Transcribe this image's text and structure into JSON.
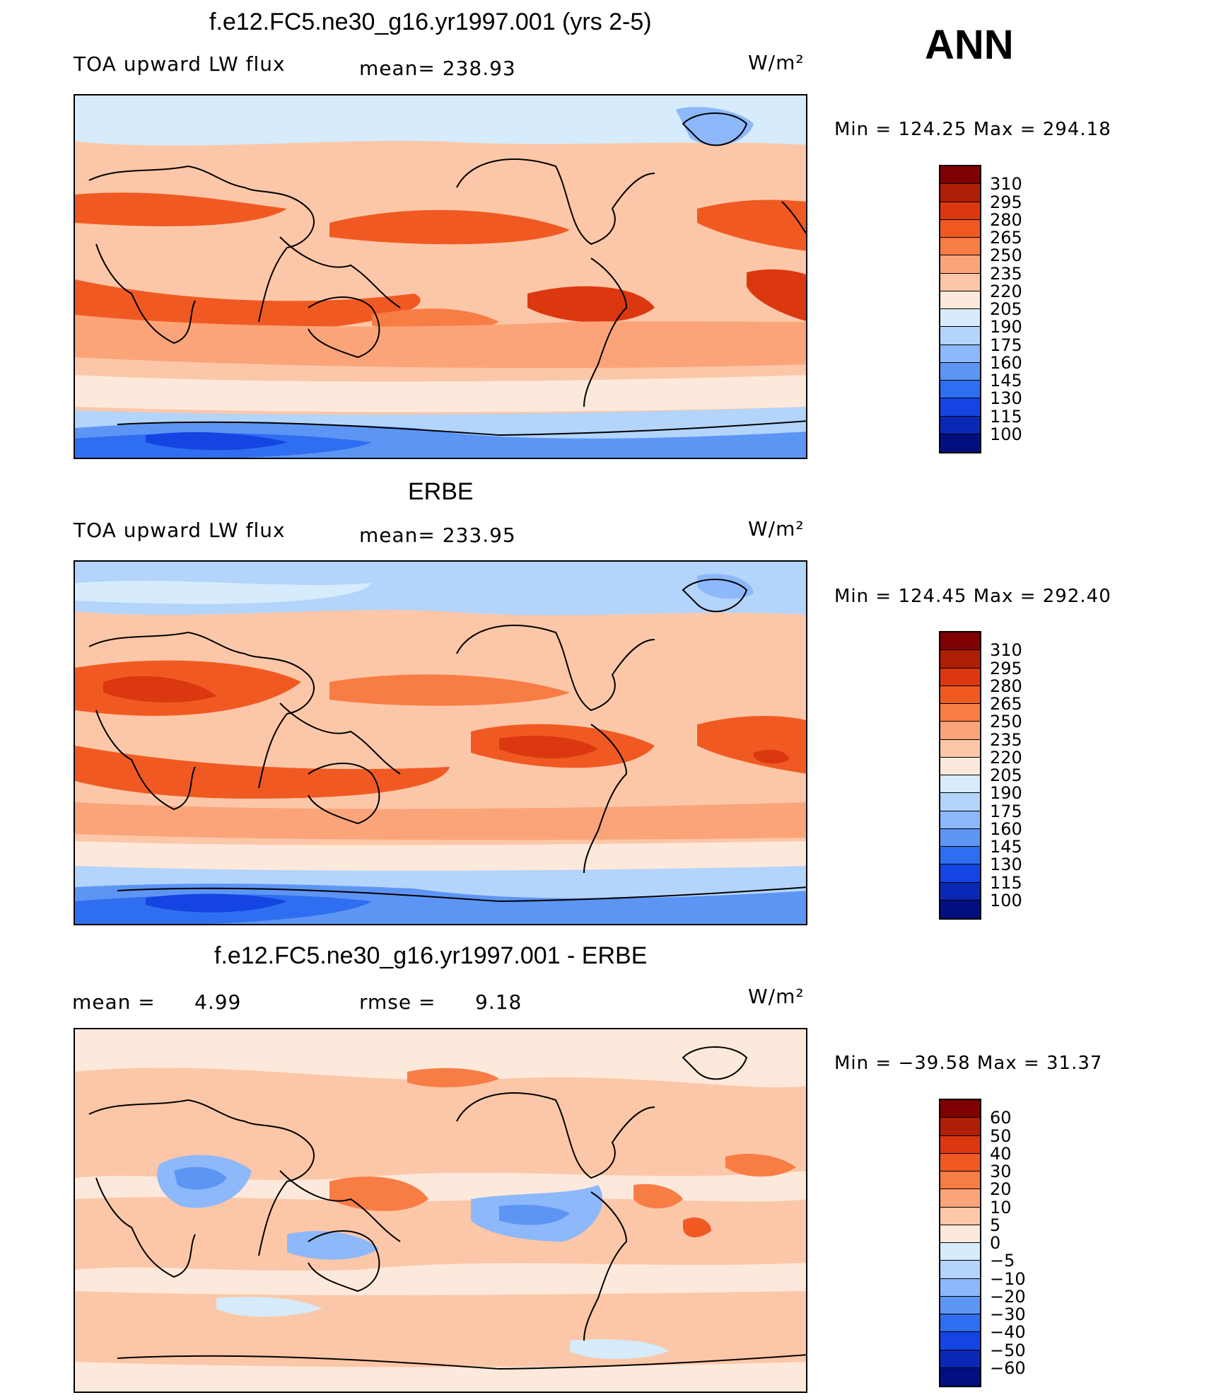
{
  "season": "ANN",
  "panels": [
    {
      "title": "f.e12.FC5.ne30_g16.yr1997.001 (yrs 2-5)",
      "variable": "TOA upward LW flux",
      "mean_text": "mean= 238.93",
      "units": "W/m²",
      "minmax": "Min  =  124.25  Max  =  294.18",
      "colorbar_labels": [
        "310",
        "295",
        "280",
        "265",
        "250",
        "235",
        "220",
        "205",
        "190",
        "175",
        "160",
        "145",
        "130",
        "115",
        "100"
      ]
    },
    {
      "title": "ERBE",
      "variable": "TOA upward LW flux",
      "mean_text": "mean= 233.95",
      "units": "W/m²",
      "minmax": "Min  =  124.45  Max  =  292.40",
      "colorbar_labels": [
        "310",
        "295",
        "280",
        "265",
        "250",
        "235",
        "220",
        "205",
        "190",
        "175",
        "160",
        "145",
        "130",
        "115",
        "100"
      ]
    },
    {
      "title": "f.e12.FC5.ne30_g16.yr1997.001 - ERBE",
      "mean_label": "mean  =",
      "mean_value": "4.99",
      "rmse_label": "rmse  =",
      "rmse_value": "9.18",
      "units": "W/m²",
      "minmax": "Min  =  −39.58  Max  =    31.37",
      "colorbar_labels": [
        "60",
        "50",
        "40",
        "30",
        "20",
        "10",
        "5",
        "0",
        "−5",
        "−10",
        "−20",
        "−30",
        "−40",
        "−50",
        "−60"
      ]
    }
  ],
  "colors": {
    "flux_scale": [
      "#7f0000",
      "#b01e05",
      "#dc3810",
      "#f05a22",
      "#f87d45",
      "#fba47a",
      "#fcc7a8",
      "#fde9dc",
      "#d6ebfb",
      "#b3d4fb",
      "#8db8fa",
      "#5d95f4",
      "#2f6ef0",
      "#1444e2",
      "#0b27b5",
      "#030f80"
    ],
    "diff_scale": [
      "#7f0000",
      "#b01e05",
      "#dc3810",
      "#f05a22",
      "#f87d45",
      "#fba47a",
      "#fcc7a8",
      "#fde9dc",
      "#d6ebfb",
      "#b3d4fb",
      "#8db8fa",
      "#5d95f4",
      "#2f6ef0",
      "#1444e2",
      "#0b27b5",
      "#030f80"
    ]
  }
}
